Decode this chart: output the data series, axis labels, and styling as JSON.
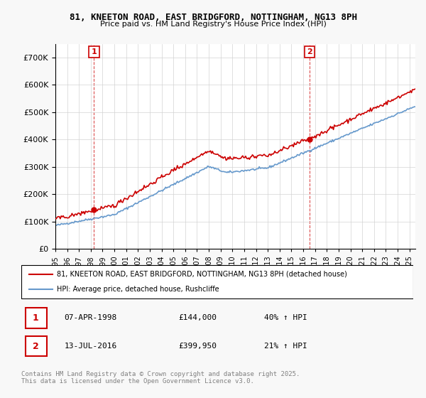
{
  "title1": "81, KNEETON ROAD, EAST BRIDGFORD, NOTTINGHAM, NG13 8PH",
  "title2": "Price paid vs. HM Land Registry's House Price Index (HPI)",
  "legend_line1": "81, KNEETON ROAD, EAST BRIDGFORD, NOTTINGHAM, NG13 8PH (detached house)",
  "legend_line2": "HPI: Average price, detached house, Rushcliffe",
  "sale1_date": "07-APR-1998",
  "sale1_price": "£144,000",
  "sale1_hpi": "40% ↑ HPI",
  "sale2_date": "13-JUL-2016",
  "sale2_price": "£399,950",
  "sale2_hpi": "21% ↑ HPI",
  "footnote": "Contains HM Land Registry data © Crown copyright and database right 2025.\nThis data is licensed under the Open Government Licence v3.0.",
  "property_color": "#cc0000",
  "hpi_color": "#6699cc",
  "vline_color": "#cc0000",
  "background_color": "#f8f8f8",
  "ylim": [
    0,
    750000
  ],
  "xlim_start": 1995.0,
  "xlim_end": 2025.5,
  "sale1_x": 1998.27,
  "sale1_y": 144000,
  "sale2_x": 2016.53,
  "sale2_y": 399950
}
